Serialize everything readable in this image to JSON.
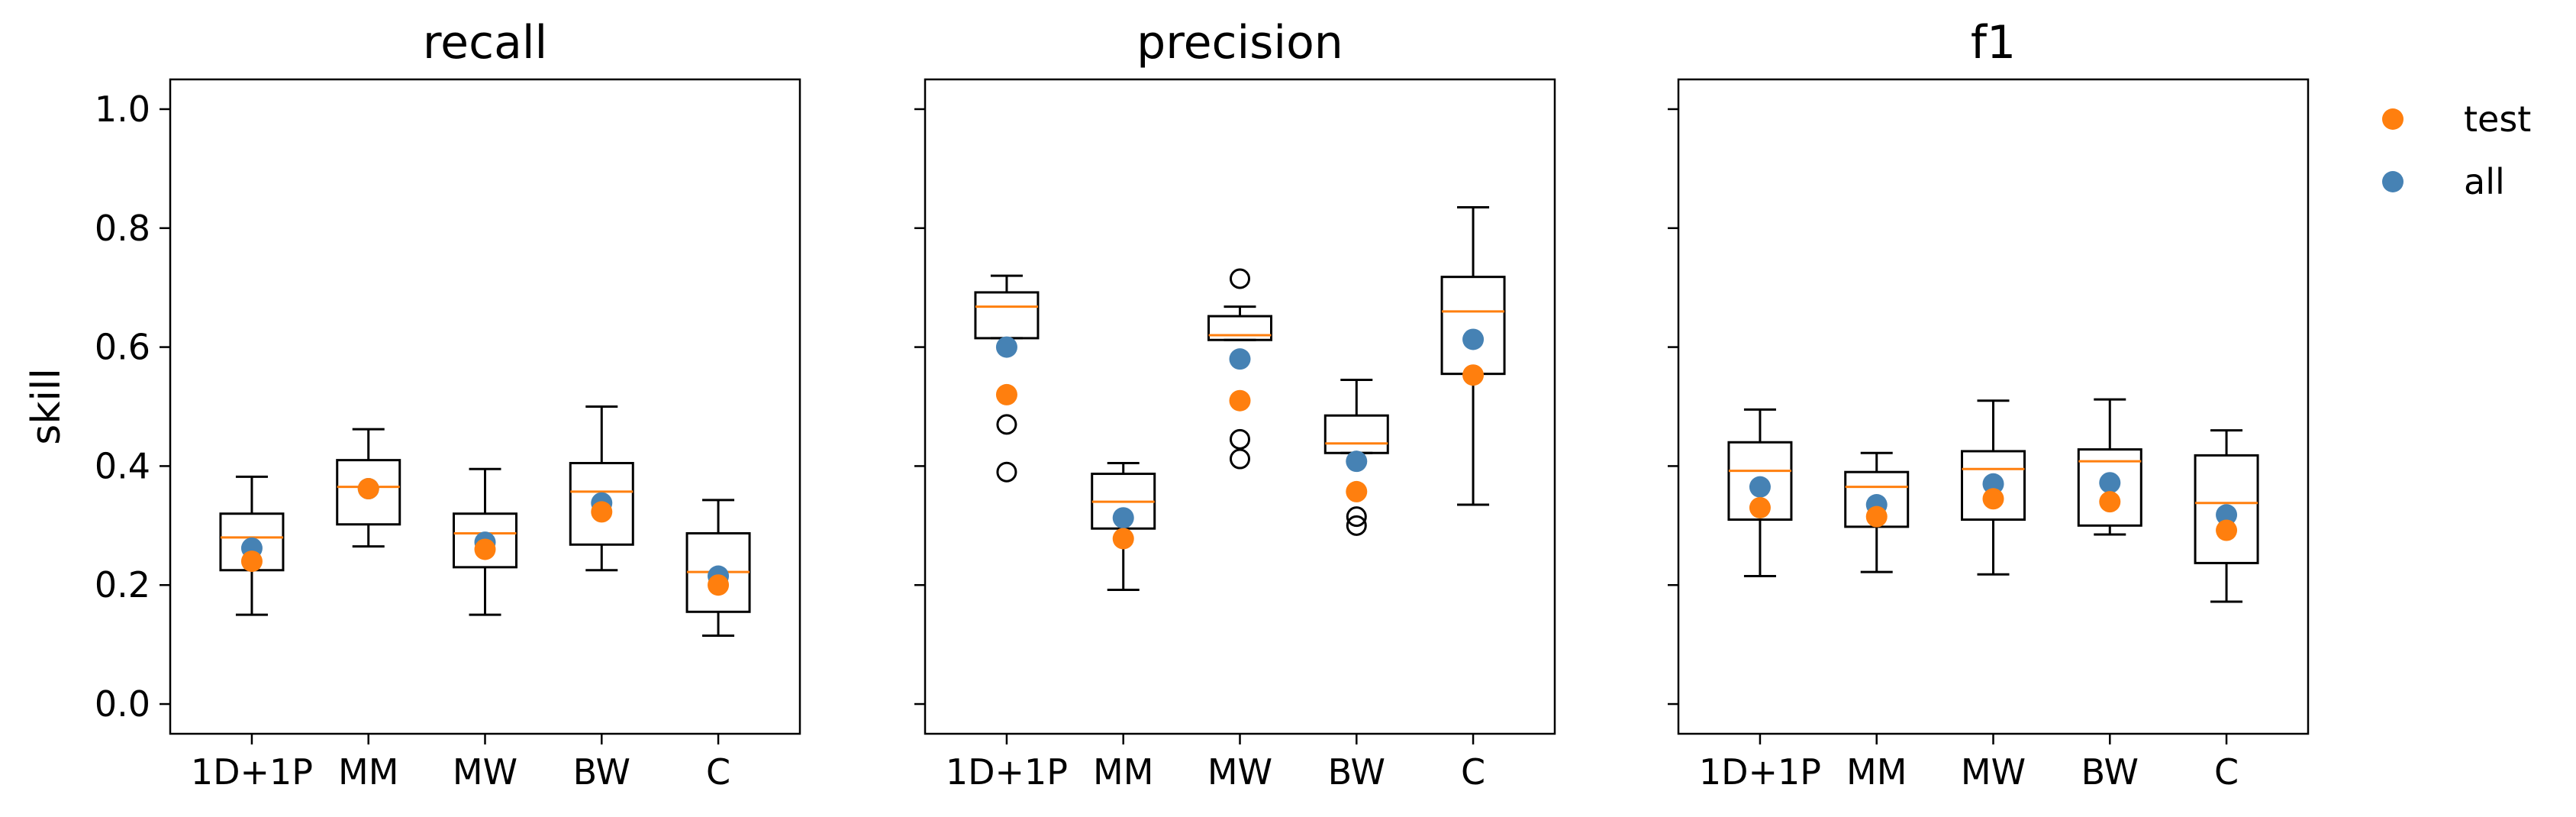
{
  "chart_data": {
    "type": "box",
    "ylabel": "skill",
    "ylim": [
      -0.05,
      1.05
    ],
    "yticks": [
      0.0,
      0.2,
      0.4,
      0.6,
      0.8,
      1.0
    ],
    "ytick_labels": [
      "0.0",
      "0.2",
      "0.4",
      "0.6",
      "0.8",
      "1.0"
    ],
    "categories": [
      "1D+1P",
      "MM",
      "MW",
      "BW",
      "C"
    ],
    "shared_y": true,
    "grid": false,
    "legend": {
      "placement": "outside-top-right",
      "entries": [
        {
          "label": "test",
          "color": "#ff7f0e"
        },
        {
          "label": "all",
          "color": "#4682b4"
        }
      ]
    },
    "colors": {
      "median": "#ff7f0e",
      "test": "#ff7f0e",
      "all": "#4682b4",
      "box": "#000000"
    },
    "panels": [
      {
        "title": "recall",
        "boxes": [
          {
            "whislo": 0.15,
            "q1": 0.225,
            "med": 0.28,
            "q3": 0.32,
            "whishi": 0.382,
            "fliers": [],
            "test": 0.24,
            "all": 0.262
          },
          {
            "whislo": 0.265,
            "q1": 0.302,
            "med": 0.365,
            "q3": 0.41,
            "whishi": 0.462,
            "fliers": [],
            "test": 0.362,
            "all": 0.362
          },
          {
            "whislo": 0.15,
            "q1": 0.23,
            "med": 0.287,
            "q3": 0.32,
            "whishi": 0.395,
            "fliers": [],
            "test": 0.26,
            "all": 0.272
          },
          {
            "whislo": 0.225,
            "q1": 0.268,
            "med": 0.357,
            "q3": 0.405,
            "whishi": 0.5,
            "fliers": [],
            "test": 0.323,
            "all": 0.338
          },
          {
            "whislo": 0.115,
            "q1": 0.155,
            "med": 0.222,
            "q3": 0.287,
            "whishi": 0.343,
            "fliers": [],
            "test": 0.2,
            "all": 0.215
          }
        ]
      },
      {
        "title": "precision",
        "boxes": [
          {
            "whislo": 0.615,
            "q1": 0.615,
            "med": 0.668,
            "q3": 0.692,
            "whishi": 0.72,
            "fliers": [
              0.47,
              0.39
            ],
            "test": 0.52,
            "all": 0.6
          },
          {
            "whislo": 0.192,
            "q1": 0.295,
            "med": 0.34,
            "q3": 0.387,
            "whishi": 0.405,
            "fliers": [],
            "test": 0.278,
            "all": 0.313
          },
          {
            "whislo": 0.612,
            "q1": 0.612,
            "med": 0.62,
            "q3": 0.652,
            "whishi": 0.668,
            "fliers": [
              0.715,
              0.445,
              0.412
            ],
            "test": 0.51,
            "all": 0.58
          },
          {
            "whislo": 0.422,
            "q1": 0.422,
            "med": 0.438,
            "q3": 0.485,
            "whishi": 0.545,
            "fliers": [
              0.315,
              0.3
            ],
            "test": 0.357,
            "all": 0.408
          },
          {
            "whislo": 0.335,
            "q1": 0.555,
            "med": 0.66,
            "q3": 0.718,
            "whishi": 0.835,
            "fliers": [],
            "test": 0.553,
            "all": 0.613
          }
        ]
      },
      {
        "title": "f1",
        "boxes": [
          {
            "whislo": 0.215,
            "q1": 0.31,
            "med": 0.392,
            "q3": 0.44,
            "whishi": 0.495,
            "fliers": [],
            "test": 0.33,
            "all": 0.365
          },
          {
            "whislo": 0.222,
            "q1": 0.298,
            "med": 0.365,
            "q3": 0.39,
            "whishi": 0.422,
            "fliers": [],
            "test": 0.315,
            "all": 0.335
          },
          {
            "whislo": 0.218,
            "q1": 0.31,
            "med": 0.395,
            "q3": 0.425,
            "whishi": 0.51,
            "fliers": [],
            "test": 0.345,
            "all": 0.37
          },
          {
            "whislo": 0.285,
            "q1": 0.3,
            "med": 0.408,
            "q3": 0.428,
            "whishi": 0.512,
            "fliers": [],
            "test": 0.34,
            "all": 0.372
          },
          {
            "whislo": 0.172,
            "q1": 0.237,
            "med": 0.338,
            "q3": 0.418,
            "whishi": 0.46,
            "fliers": [],
            "test": 0.292,
            "all": 0.318
          }
        ]
      }
    ]
  }
}
